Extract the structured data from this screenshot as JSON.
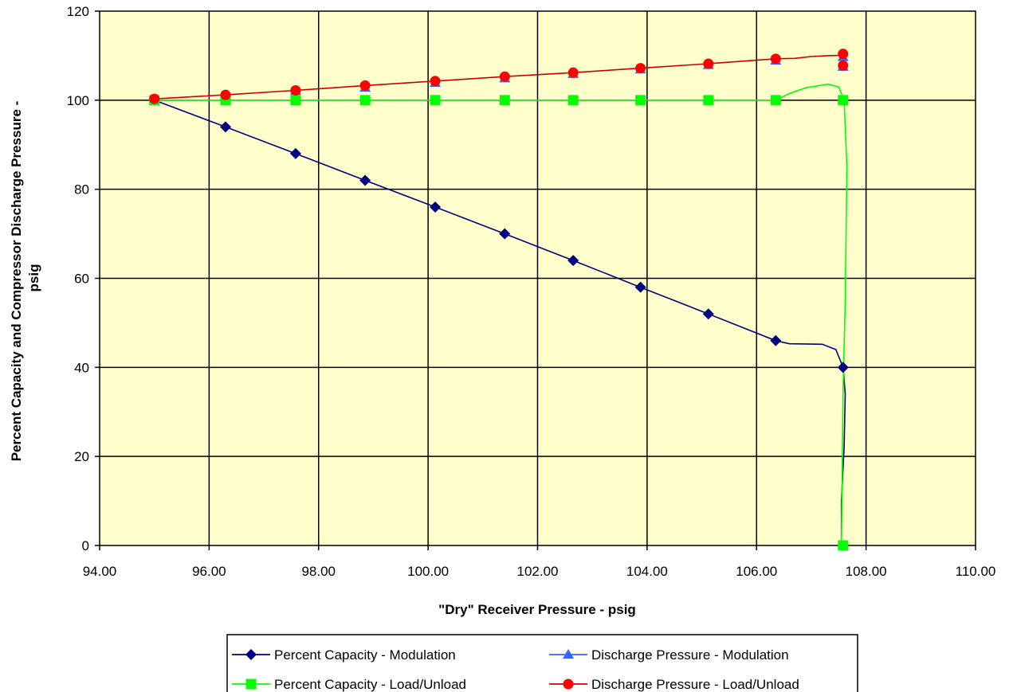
{
  "chart_data": {
    "type": "line",
    "xlabel": "\"Dry\" Receiver Pressure - psig",
    "ylabel_line1": "Percent Capacity and Compressor Discharge Pressure -",
    "ylabel_line2": "psig",
    "xlim": [
      94,
      110
    ],
    "ylim": [
      0,
      120
    ],
    "x_ticks": [
      94,
      96,
      98,
      100,
      102,
      104,
      106,
      108,
      110
    ],
    "x_tick_labels": [
      "94.00",
      "96.00",
      "98.00",
      "100.00",
      "102.00",
      "104.00",
      "106.00",
      "108.00",
      "110.00"
    ],
    "y_ticks": [
      0,
      20,
      40,
      60,
      80,
      100,
      120
    ],
    "y_tick_labels": [
      "0",
      "20",
      "40",
      "60",
      "80",
      "100",
      "120"
    ],
    "grid": true,
    "plot_background": "#ffffcc",
    "legend_position": "bottom",
    "series": [
      {
        "name": "Percent Capacity - Modulation",
        "color": "#000080",
        "marker": "diamond",
        "markers": [
          [
            95.0,
            100
          ],
          [
            96.3,
            94
          ],
          [
            97.58,
            88
          ],
          [
            98.85,
            82
          ],
          [
            100.13,
            76
          ],
          [
            101.4,
            70
          ],
          [
            102.65,
            64
          ],
          [
            103.88,
            58
          ],
          [
            105.12,
            52
          ],
          [
            106.35,
            46
          ],
          [
            107.58,
            40
          ]
        ],
        "line": [
          [
            95.0,
            100
          ],
          [
            96.3,
            94
          ],
          [
            97.58,
            88
          ],
          [
            98.85,
            82
          ],
          [
            100.13,
            76
          ],
          [
            101.4,
            70
          ],
          [
            102.65,
            64
          ],
          [
            103.88,
            58
          ],
          [
            105.12,
            52
          ],
          [
            106.35,
            46
          ],
          [
            106.6,
            45.3
          ],
          [
            107.2,
            45.2
          ],
          [
            107.45,
            44
          ],
          [
            107.58,
            40
          ],
          [
            107.62,
            34
          ],
          [
            107.6,
            22
          ],
          [
            107.55,
            10
          ],
          [
            107.55,
            0
          ]
        ]
      },
      {
        "name": "Discharge Pressure - Modulation",
        "color": "#3366ff",
        "marker": "triangle",
        "markers": [
          [
            95.0,
            100.2
          ],
          [
            96.3,
            101.1
          ],
          [
            97.58,
            102.1
          ],
          [
            98.85,
            102.8
          ],
          [
            100.13,
            103.9
          ],
          [
            101.4,
            104.9
          ],
          [
            102.65,
            105.9
          ],
          [
            103.88,
            106.9
          ],
          [
            105.12,
            107.9
          ],
          [
            106.35,
            108.9
          ],
          [
            107.58,
            109.7
          ],
          [
            107.58,
            107.5
          ]
        ],
        "line": []
      },
      {
        "name": "Percent Capacity - Load/Unload",
        "color": "#00ff00",
        "marker": "square",
        "markers": [
          [
            95.0,
            100
          ],
          [
            96.3,
            100
          ],
          [
            97.58,
            100
          ],
          [
            98.85,
            100
          ],
          [
            100.13,
            100
          ],
          [
            101.4,
            100
          ],
          [
            102.65,
            100
          ],
          [
            103.88,
            100
          ],
          [
            105.12,
            100
          ],
          [
            106.35,
            100
          ],
          [
            107.58,
            100
          ],
          [
            107.58,
            0
          ]
        ],
        "line": [
          [
            95.0,
            100
          ],
          [
            96.3,
            100
          ],
          [
            97.58,
            100
          ],
          [
            98.85,
            100
          ],
          [
            100.13,
            100
          ],
          [
            101.4,
            100
          ],
          [
            102.65,
            100
          ],
          [
            103.88,
            100
          ],
          [
            105.12,
            100
          ],
          [
            106.35,
            100
          ],
          [
            106.6,
            101.5
          ],
          [
            106.9,
            102.8
          ],
          [
            107.3,
            103.6
          ],
          [
            107.5,
            103
          ],
          [
            107.6,
            100
          ],
          [
            107.65,
            85
          ],
          [
            107.62,
            55
          ],
          [
            107.58,
            35
          ],
          [
            107.55,
            0
          ]
        ]
      },
      {
        "name": "Discharge Pressure - Load/Unload",
        "color": "#ff0000",
        "line_color": "#cc0000",
        "marker": "circle",
        "markers": [
          [
            95.0,
            100.3
          ],
          [
            96.3,
            101.2
          ],
          [
            97.58,
            102.2
          ],
          [
            98.85,
            103.3
          ],
          [
            100.13,
            104.3
          ],
          [
            101.4,
            105.3
          ],
          [
            102.65,
            106.2
          ],
          [
            103.88,
            107.2
          ],
          [
            105.12,
            108.2
          ],
          [
            106.35,
            109.3
          ],
          [
            107.58,
            110.4
          ],
          [
            107.58,
            107.8
          ]
        ],
        "line": [
          [
            95.0,
            100.3
          ],
          [
            96.3,
            101.2
          ],
          [
            97.58,
            102.2
          ],
          [
            98.85,
            103.3
          ],
          [
            100.13,
            104.3
          ],
          [
            101.4,
            105.3
          ],
          [
            102.65,
            106.2
          ],
          [
            103.88,
            107.2
          ],
          [
            105.12,
            108.2
          ],
          [
            106.35,
            109.3
          ],
          [
            106.7,
            109.4
          ],
          [
            107.0,
            109.8
          ],
          [
            107.3,
            110.0
          ],
          [
            107.58,
            110.1
          ]
        ]
      }
    ]
  }
}
